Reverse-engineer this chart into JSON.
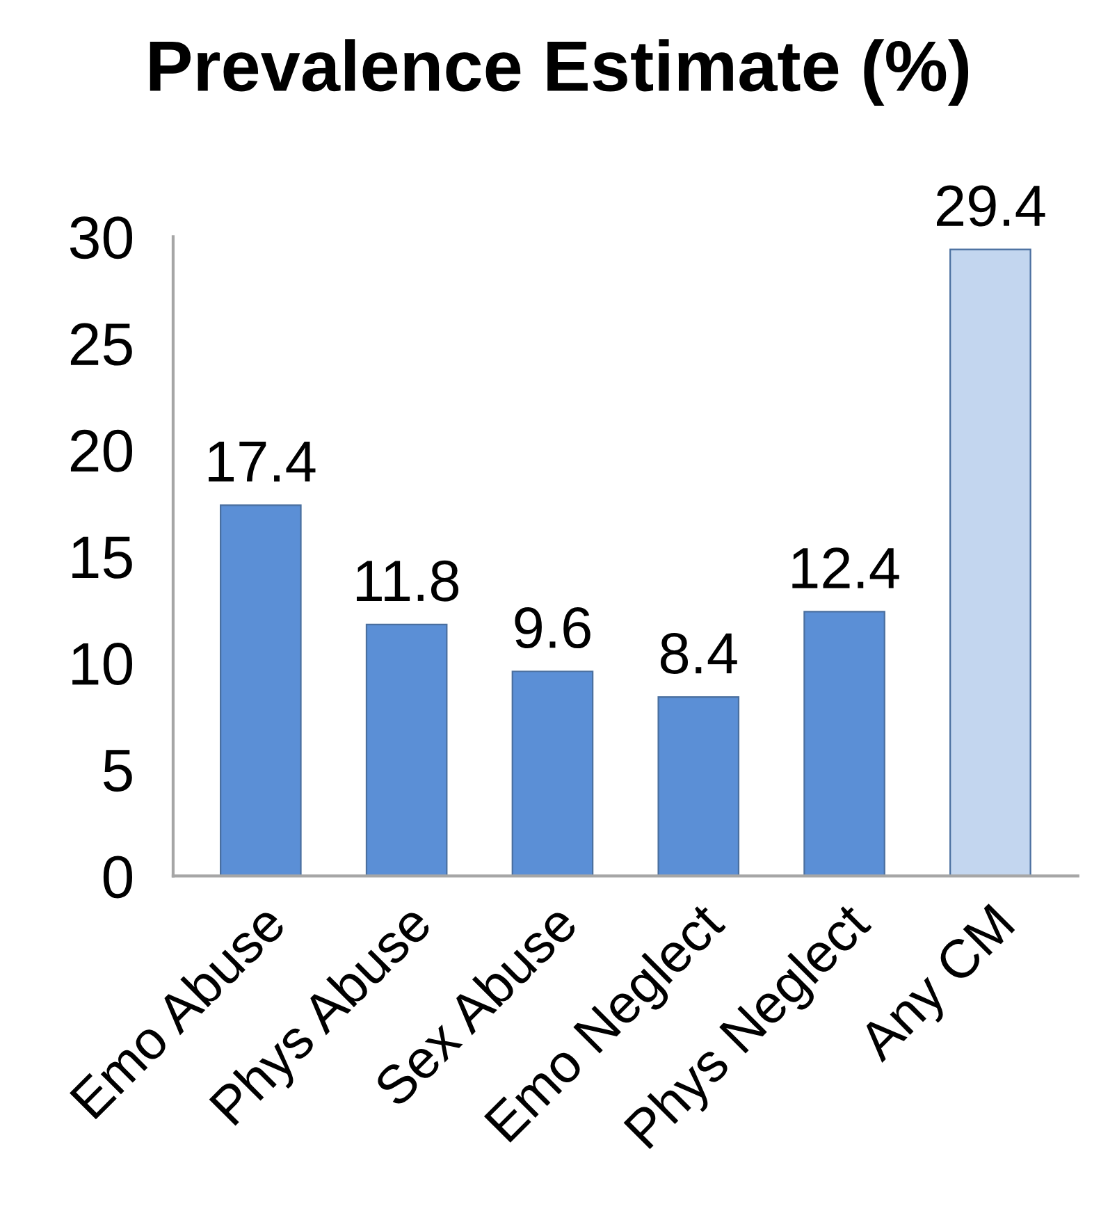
{
  "chart_data": {
    "type": "bar",
    "title": "Prevalence Estimate (%)",
    "categories": [
      "Emo Abuse",
      "Phys Abuse",
      "Sex Abuse",
      "Emo Neglect",
      "Phys Neglect",
      "Any CM"
    ],
    "values": [
      17.4,
      11.8,
      9.6,
      8.4,
      12.4,
      29.4
    ],
    "colors": [
      "#5b8fd6",
      "#5b8fd6",
      "#5b8fd6",
      "#5b8fd6",
      "#5b8fd6",
      "#c3d6ef"
    ],
    "ylim": [
      0,
      30
    ],
    "yticks": [
      0,
      5,
      10,
      15,
      20,
      25,
      30
    ],
    "grid": false,
    "legend": false,
    "data_labels": true
  }
}
